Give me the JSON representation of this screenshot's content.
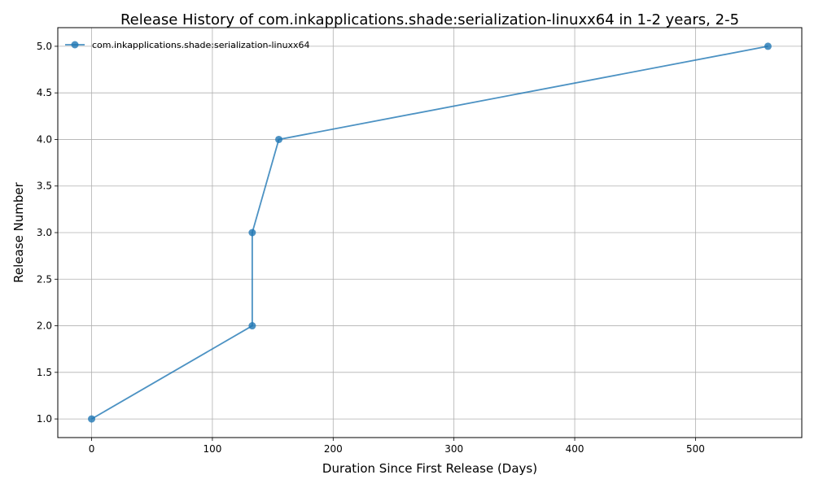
{
  "chart_data": {
    "type": "line",
    "title": "Release History of com.inkapplications.shade:serialization-linuxx64 in 1-2 years, 2-5",
    "xlabel": "Duration Since First Release (Days)",
    "ylabel": "Release Number",
    "xlim": [
      -28,
      588
    ],
    "ylim": [
      0.8,
      5.2
    ],
    "xticks": [
      0,
      100,
      200,
      300,
      400,
      500
    ],
    "yticks": [
      1.0,
      1.5,
      2.0,
      2.5,
      3.0,
      3.5,
      4.0,
      4.5,
      5.0
    ],
    "xtick_labels": [
      "0",
      "100",
      "200",
      "300",
      "400",
      "500"
    ],
    "ytick_labels": [
      "1.0",
      "1.5",
      "2.0",
      "2.5",
      "3.0",
      "3.5",
      "4.0",
      "4.5",
      "5.0"
    ],
    "grid": true,
    "legend_position": "top-left",
    "series": [
      {
        "name": "com.inkapplications.shade:serialization-linuxx64",
        "color": "#1f77b4",
        "x": [
          0,
          133,
          133,
          155,
          560
        ],
        "y": [
          1,
          2,
          3,
          4,
          5
        ]
      }
    ]
  }
}
